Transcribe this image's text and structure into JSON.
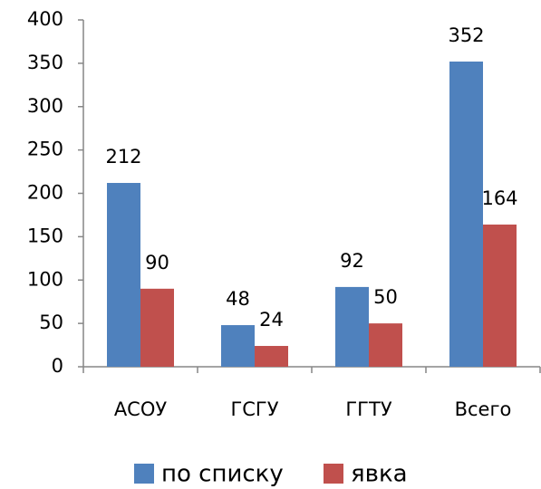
{
  "chart_data": {
    "type": "bar",
    "categories": [
      "АСОУ",
      "ГСГУ",
      "ГГТУ",
      "Всего"
    ],
    "series": [
      {
        "name": "по списку",
        "color": "#4f81bd",
        "values": [
          212,
          48,
          92,
          352
        ]
      },
      {
        "name": "явка",
        "color": "#c0504d",
        "values": [
          90,
          24,
          50,
          164
        ]
      }
    ],
    "ylim": [
      0,
      400
    ],
    "yticks": [
      0,
      50,
      100,
      150,
      200,
      250,
      300,
      350,
      400
    ],
    "grid": false,
    "legend": "bottom",
    "data_labels": true
  }
}
